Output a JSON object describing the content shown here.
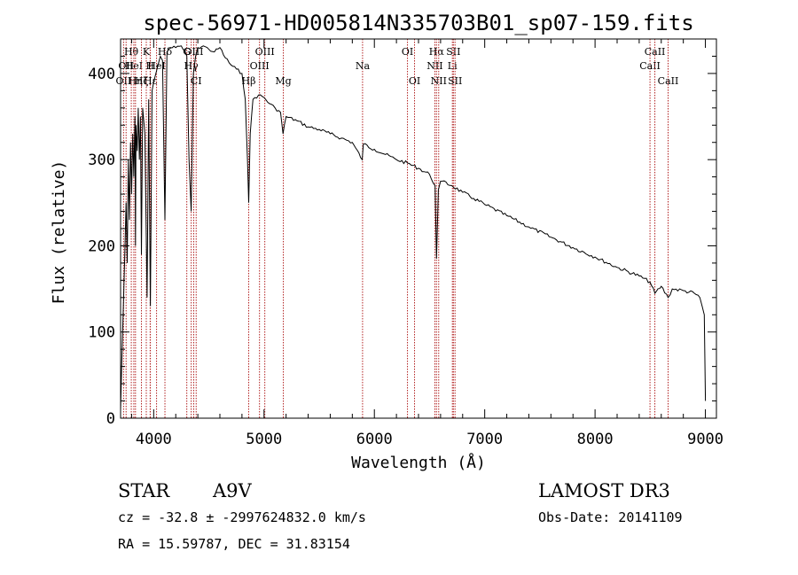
{
  "chart_data": {
    "type": "line",
    "title": "spec-56971-HD005814N335703B01_sp07-159.fits",
    "xlabel": "Wavelength (Å)",
    "ylabel": "Flux (relative)",
    "xlim": [
      3700,
      9100
    ],
    "ylim": [
      0,
      440
    ],
    "x_ticks": [
      4000,
      5000,
      6000,
      7000,
      8000,
      9000
    ],
    "y_ticks": [
      0,
      100,
      200,
      300,
      400
    ],
    "grid": false,
    "series": [
      {
        "name": "spectrum",
        "x": [
          3700,
          3710,
          3730,
          3740,
          3750,
          3760,
          3770,
          3780,
          3790,
          3800,
          3810,
          3820,
          3830,
          3835,
          3840,
          3850,
          3860,
          3870,
          3880,
          3889,
          3900,
          3920,
          3940,
          3955,
          3970,
          3985,
          4000,
          4020,
          4040,
          4060,
          4080,
          4102,
          4120,
          4150,
          4200,
          4250,
          4300,
          4320,
          4340,
          4360,
          4380,
          4400,
          4450,
          4500,
          4550,
          4600,
          4650,
          4700,
          4750,
          4800,
          4830,
          4850,
          4861,
          4875,
          4900,
          4950,
          5000,
          5050,
          5100,
          5150,
          5172,
          5200,
          5300,
          5400,
          5500,
          5600,
          5700,
          5800,
          5890,
          5900,
          6000,
          6100,
          6200,
          6300,
          6400,
          6500,
          6550,
          6563,
          6580,
          6600,
          6700,
          6800,
          6900,
          7000,
          7200,
          7400,
          7600,
          7800,
          8000,
          8200,
          8400,
          8498,
          8542,
          8600,
          8662,
          8700,
          8800,
          8900,
          8950,
          8990,
          9000
        ],
        "y": [
          10,
          60,
          150,
          200,
          250,
          180,
          300,
          230,
          320,
          260,
          330,
          280,
          350,
          200,
          340,
          310,
          360,
          300,
          350,
          190,
          360,
          330,
          140,
          370,
          130,
          380,
          390,
          400,
          410,
          420,
          415,
          230,
          425,
          430,
          430,
          432,
          420,
          300,
          240,
          400,
          420,
          430,
          432,
          428,
          425,
          430,
          418,
          410,
          405,
          400,
          370,
          300,
          250,
          330,
          370,
          375,
          372,
          365,
          360,
          355,
          330,
          350,
          345,
          338,
          335,
          330,
          325,
          320,
          300,
          318,
          312,
          306,
          300,
          296,
          290,
          283,
          270,
          185,
          265,
          275,
          270,
          262,
          255,
          248,
          235,
          222,
          210,
          198,
          187,
          175,
          165,
          158,
          145,
          153,
          140,
          150,
          148,
          145,
          140,
          120,
          20
        ]
      }
    ],
    "line_markers": [
      {
        "wl": 3727,
        "label": "OII",
        "row": 3
      },
      {
        "wl": 3750,
        "label": "OII",
        "row": 2
      },
      {
        "wl": 3797,
        "label": "Hθ",
        "row": 1
      },
      {
        "wl": 3820,
        "label": "HeI",
        "row": 2
      },
      {
        "wl": 3835,
        "label": "Hη",
        "row": 3
      },
      {
        "wl": 3889,
        "label": "Hζ",
        "row": 3
      },
      {
        "wl": 3933,
        "label": "K",
        "row": 1
      },
      {
        "wl": 3968,
        "label": "H",
        "row": 2
      },
      {
        "wl": 3970,
        "label": "Hε",
        "row": 3
      },
      {
        "wl": 4102,
        "label": "Hδ",
        "row": 1
      },
      {
        "wl": 4026,
        "label": "HeI",
        "row": 2
      },
      {
        "wl": 4300,
        "label": "G",
        "row": 1
      },
      {
        "wl": 4340,
        "label": "Hγ",
        "row": 2
      },
      {
        "wl": 4363,
        "label": "OIII",
        "row": 1
      },
      {
        "wl": 4385,
        "label": "CI",
        "row": 3
      },
      {
        "wl": 4861,
        "label": "Hβ",
        "row": 3
      },
      {
        "wl": 4959,
        "label": "OIII",
        "row": 2
      },
      {
        "wl": 5007,
        "label": "OIII",
        "row": 1
      },
      {
        "wl": 5175,
        "label": "Mg",
        "row": 3
      },
      {
        "wl": 5893,
        "label": "Na",
        "row": 2
      },
      {
        "wl": 6300,
        "label": "OI",
        "row": 1
      },
      {
        "wl": 6364,
        "label": "OI",
        "row": 3
      },
      {
        "wl": 6548,
        "label": "NII",
        "row": 2
      },
      {
        "wl": 6563,
        "label": "Hα",
        "row": 1
      },
      {
        "wl": 6583,
        "label": "NII",
        "row": 3
      },
      {
        "wl": 6707,
        "label": "Li",
        "row": 2
      },
      {
        "wl": 6716,
        "label": "SII",
        "row": 1
      },
      {
        "wl": 6731,
        "label": "SII",
        "row": 3
      },
      {
        "wl": 8498,
        "label": "CaII",
        "row": 2
      },
      {
        "wl": 8542,
        "label": "CaII",
        "row": 1
      },
      {
        "wl": 8662,
        "label": "CaII",
        "row": 3
      }
    ]
  },
  "info": {
    "class_label": "STAR",
    "subclass": "A9V",
    "survey": "LAMOST DR3",
    "cz": "cz = -32.8 ± -2997624832.0 km/s",
    "obs_date": "Obs-Date: 20141109",
    "coords": "RA =  15.59787, DEC =  31.83154"
  },
  "colors": {
    "axis": "#000000",
    "spectrum": "#000000",
    "marker": "#b22222"
  }
}
